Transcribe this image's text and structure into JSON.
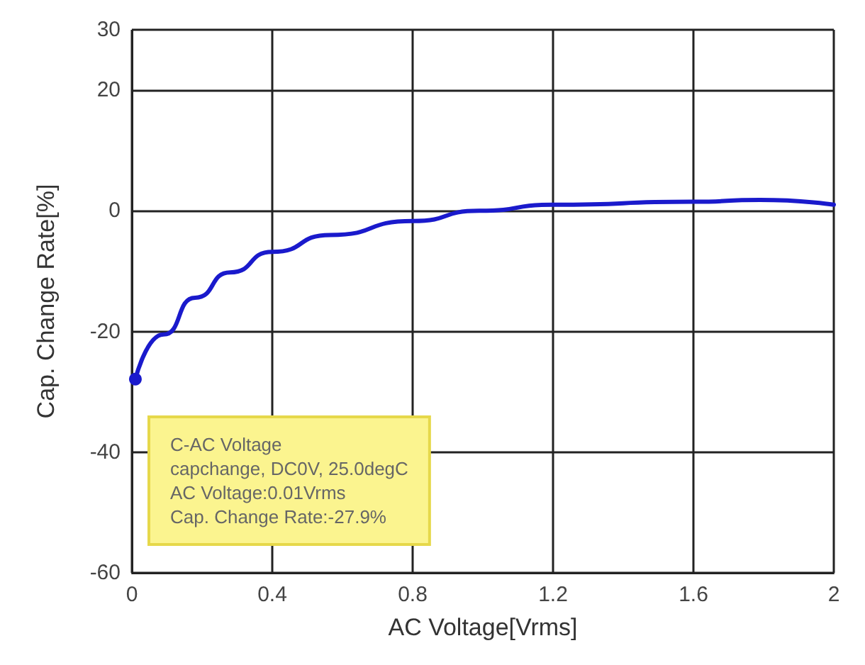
{
  "chart_data": {
    "type": "line",
    "xlabel": "AC Voltage[Vrms]",
    "ylabel": "Cap. Change Rate[%]",
    "series": [
      {
        "color": "#1a1acc",
        "x": [
          0.01,
          0.09,
          0.18,
          0.28,
          0.4,
          0.565,
          0.8,
          0.99,
          1.2,
          1.6,
          1.79,
          2.0
        ],
        "values": [
          -27.9,
          -20.5,
          -14.4,
          -10.2,
          -6.8,
          -4,
          -1.7,
          0,
          1,
          1.5,
          1.8,
          1
        ]
      }
    ],
    "xlim": [
      0,
      2
    ],
    "xticks": [
      0,
      0.4,
      0.8,
      1.2,
      1.6,
      2
    ],
    "ylim": [
      -60,
      30
    ],
    "yticks": [
      -60,
      -40,
      -20,
      0,
      20,
      30
    ],
    "grid": true,
    "annotations": [
      "C-AC Voltage\ncapchange, DC0V, 25.0degC\nAC Voltage:0.01Vrms\nCap. Change Rate:-27.9%"
    ]
  }
}
